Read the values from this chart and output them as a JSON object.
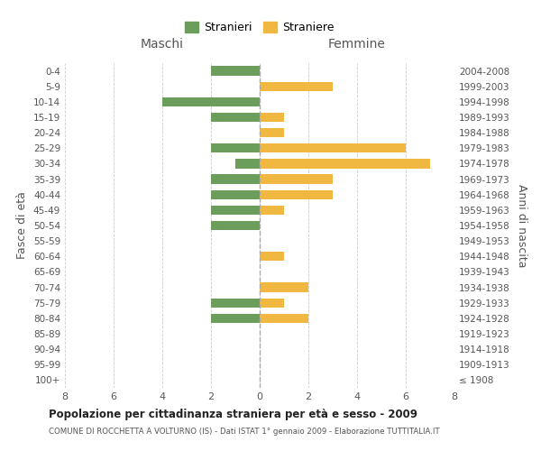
{
  "age_groups": [
    "100+",
    "95-99",
    "90-94",
    "85-89",
    "80-84",
    "75-79",
    "70-74",
    "65-69",
    "60-64",
    "55-59",
    "50-54",
    "45-49",
    "40-44",
    "35-39",
    "30-34",
    "25-29",
    "20-24",
    "15-19",
    "10-14",
    "5-9",
    "0-4"
  ],
  "birth_years": [
    "≤ 1908",
    "1909-1913",
    "1914-1918",
    "1919-1923",
    "1924-1928",
    "1929-1933",
    "1934-1938",
    "1939-1943",
    "1944-1948",
    "1949-1953",
    "1954-1958",
    "1959-1963",
    "1964-1968",
    "1969-1973",
    "1974-1978",
    "1979-1983",
    "1984-1988",
    "1989-1993",
    "1994-1998",
    "1999-2003",
    "2004-2008"
  ],
  "maschi_values": [
    0,
    0,
    0,
    0,
    -2,
    -2,
    0,
    0,
    0,
    0,
    -2,
    -2,
    -2,
    -2,
    -1,
    -2,
    0,
    -2,
    -4,
    0,
    -2
  ],
  "femmine_values": [
    0,
    0,
    0,
    0,
    2,
    1,
    2,
    0,
    1,
    0,
    0,
    1,
    3,
    3,
    7,
    6,
    1,
    1,
    0,
    3,
    0
  ],
  "maschi_color": "#6a9e5a",
  "femmine_color": "#f0b840",
  "background_color": "#ffffff",
  "grid_color": "#cccccc",
  "title": "Popolazione per cittadinanza straniera per età e sesso - 2009",
  "subtitle": "COMUNE DI ROCCHETTA A VOLTURNO (IS) - Dati ISTAT 1° gennaio 2009 - Elaborazione TUTTITALIA.IT",
  "ylabel_left": "Fasce di età",
  "ylabel_right": "Anni di nascita",
  "xlabel_left": "Maschi",
  "xlabel_right": "Femmine",
  "legend_maschi": "Stranieri",
  "legend_femmine": "Straniere",
  "xlim": [
    -8,
    8
  ],
  "xticks": [
    -8,
    -6,
    -4,
    -2,
    0,
    2,
    4,
    6,
    8
  ],
  "xtick_labels": [
    "8",
    "6",
    "4",
    "2",
    "0",
    "2",
    "4",
    "6",
    "8"
  ]
}
